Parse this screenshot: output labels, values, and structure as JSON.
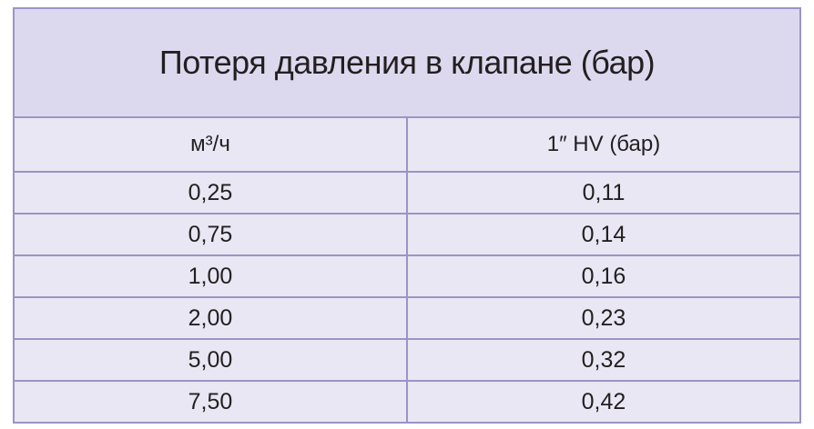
{
  "table": {
    "title": "Потеря давления в клапане (бар)",
    "header": [
      "м³/ч",
      "1″ HV (бар)"
    ],
    "rows": [
      [
        "0,25",
        "0,11"
      ],
      [
        "0,75",
        "0,14"
      ],
      [
        "1,00",
        "0,16"
      ],
      [
        "2,00",
        "0,23"
      ],
      [
        "5,00",
        "0,32"
      ],
      [
        "7,50",
        "0,42"
      ]
    ]
  }
}
